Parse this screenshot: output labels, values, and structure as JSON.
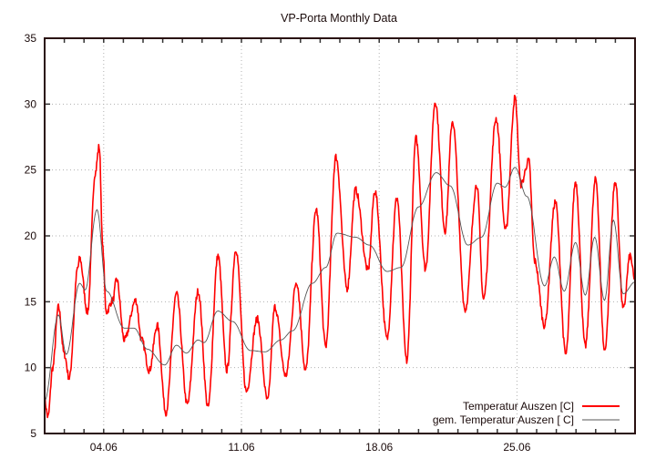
{
  "chart_data": {
    "type": "line",
    "title": "VP-Porta Monthly Data",
    "xlabel": "",
    "ylabel": "",
    "ylim": [
      5,
      35
    ],
    "xlim_days": [
      0,
      30
    ],
    "x_unit": "days since 01.06 00:00",
    "yticks": [
      5,
      10,
      15,
      20,
      25,
      30,
      35
    ],
    "ytick_labels": [
      "5",
      "10",
      "15",
      "20",
      "25",
      "30",
      "35"
    ],
    "xticks": [
      {
        "day": 3,
        "label": "04.06"
      },
      {
        "day": 10,
        "label": "11.06"
      },
      {
        "day": 17,
        "label": "18.06"
      },
      {
        "day": 24,
        "label": "25.06"
      }
    ],
    "minor_xtick_step_days": 1,
    "grid": true,
    "legend": {
      "position": "bottom-right",
      "entries": [
        {
          "label": "Temperatur Auszen [C]",
          "color": "#ff0000"
        },
        {
          "label": "gem. Temperatur Auszen [ C]",
          "color": "#555555"
        }
      ]
    },
    "series": [
      {
        "name": "Temperatur Auszen [C]",
        "color": "#ff0000",
        "x": [
          0.0,
          0.17,
          0.41,
          0.7,
          1.0,
          1.25,
          1.69,
          1.78,
          2.18,
          2.57,
          2.77,
          2.96,
          3.12,
          3.46,
          3.66,
          4.05,
          4.63,
          4.93,
          5.32,
          5.72,
          6.16,
          6.7,
          7.25,
          7.8,
          8.3,
          8.81,
          9.26,
          9.72,
          10.25,
          10.8,
          11.33,
          11.7,
          12.25,
          12.8,
          13.26,
          13.8,
          14.28,
          14.8,
          15.37,
          15.8,
          16.43,
          16.78,
          17.4,
          17.9,
          18.4,
          18.87,
          19.35,
          19.85,
          20.35,
          20.72,
          21.37,
          21.96,
          22.3,
          22.94,
          23.43,
          23.9,
          24.2,
          24.6,
          24.9,
          25.4,
          25.95,
          26.48,
          26.98,
          27.47,
          28.0,
          28.45,
          29.0,
          29.4,
          29.75,
          30.0
        ],
        "values": [
          7.5,
          6.25,
          10.0,
          14.6,
          11.0,
          9.2,
          17.6,
          18.3,
          14.2,
          24.8,
          26.8,
          19.0,
          14.2,
          15.1,
          16.7,
          12.1,
          15.1,
          12.1,
          9.8,
          13.2,
          6.6,
          15.6,
          7.2,
          15.8,
          7.0,
          18.5,
          9.8,
          19.0,
          8.2,
          13.7,
          7.5,
          14.6,
          9.4,
          16.5,
          9.8,
          22.0,
          11.6,
          26.0,
          16.0,
          23.5,
          17.4,
          23.4,
          12.2,
          22.9,
          10.5,
          27.4,
          17.5,
          30.2,
          20.4,
          28.7,
          14.4,
          23.9,
          15.2,
          28.9,
          20.4,
          30.5,
          23.9,
          25.7,
          18.1,
          13.2,
          22.6,
          11.0,
          24.1,
          11.6,
          24.3,
          11.3,
          24.1,
          14.4,
          18.5,
          16.5
        ]
      },
      {
        "name": "gem. Temperatur Auszen [ C]",
        "color": "#555555",
        "x": [
          0.0,
          0.7,
          1.1,
          1.78,
          2.06,
          2.66,
          3.15,
          4.05,
          4.54,
          5.22,
          6.1,
          6.7,
          7.2,
          7.8,
          8.1,
          8.8,
          9.55,
          10.45,
          11.2,
          12.0,
          12.6,
          13.6,
          14.28,
          14.86,
          15.8,
          16.5,
          17.4,
          18.1,
          19.0,
          19.9,
          20.6,
          21.5,
          22.2,
          23.0,
          23.4,
          23.9,
          24.5,
          25.4,
          25.9,
          26.4,
          26.98,
          27.47,
          27.95,
          28.45,
          28.9,
          29.4,
          30.0
        ],
        "values": [
          7.5,
          14.0,
          11.0,
          16.4,
          15.9,
          22.0,
          15.8,
          13.0,
          13.0,
          11.4,
          10.2,
          11.7,
          11.1,
          12.1,
          11.9,
          14.3,
          13.5,
          11.3,
          11.2,
          12.1,
          12.8,
          16.4,
          17.6,
          20.2,
          19.9,
          19.3,
          17.3,
          17.6,
          22.2,
          24.8,
          23.8,
          19.3,
          19.9,
          24.0,
          23.7,
          25.2,
          23.0,
          16.2,
          18.4,
          15.8,
          19.5,
          15.5,
          19.9,
          15.1,
          21.2,
          15.6,
          16.5
        ]
      }
    ]
  }
}
